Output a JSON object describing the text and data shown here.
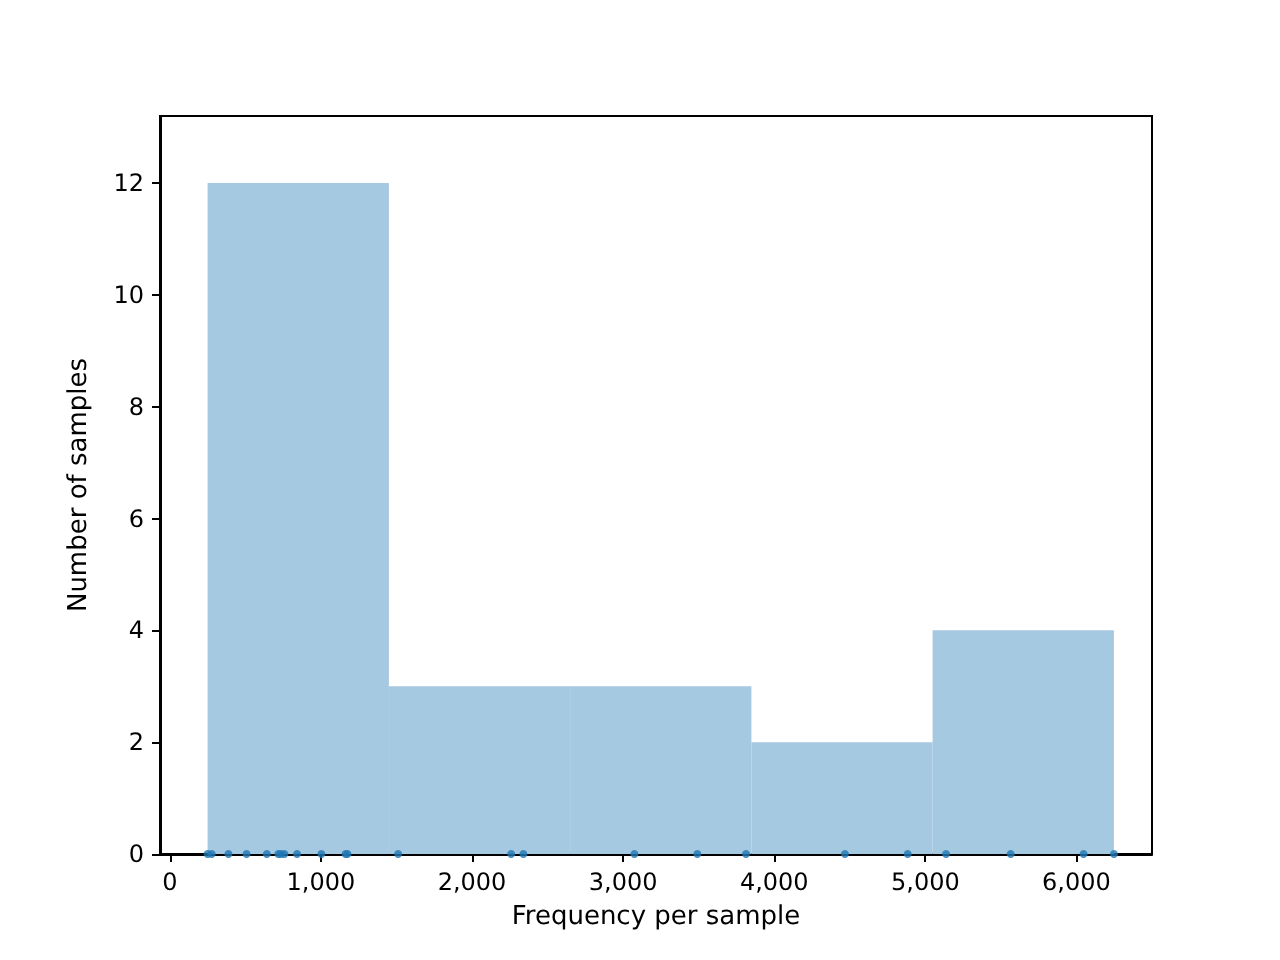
{
  "chart_data": {
    "type": "histogram",
    "xlabel": "Frequency per sample",
    "ylabel": "Number of samples",
    "bins": [
      250,
      1450,
      2649,
      3849,
      5048,
      6248
    ],
    "values": [
      12,
      3,
      3,
      2,
      4
    ],
    "color": "#a5c9e1",
    "series": [
      {
        "type": "scatter",
        "color": "#1f77b4",
        "x": [
          250,
          277,
          388,
          508,
          642,
          718,
          735,
          758,
          842,
          1003,
          1163,
          1176,
          1511,
          2259,
          2340,
          3075,
          3491,
          3813,
          4468,
          4883,
          5137,
          5565,
          6047,
          6248
        ],
        "values": [
          0,
          0,
          0,
          0,
          0,
          0,
          0,
          0,
          0,
          0,
          0,
          0,
          0,
          0,
          0,
          0,
          0,
          0,
          0,
          0,
          0,
          0,
          0,
          0
        ]
      }
    ],
    "xlim": [
      -65,
      6500
    ],
    "ylim": [
      0,
      13.2
    ],
    "xticks": [
      0,
      {
        "value": 1000,
        "label": "1,000"
      },
      {
        "value": 2000,
        "label": "2,000"
      },
      {
        "value": 3000,
        "label": "3,000"
      },
      {
        "value": 4000,
        "label": "4,000"
      },
      {
        "value": 5000,
        "label": "5,000"
      },
      {
        "value": 6000,
        "label": "6,000"
      }
    ],
    "yticks": [
      0,
      2,
      4,
      6,
      8,
      10,
      12
    ],
    "grid": false
  }
}
